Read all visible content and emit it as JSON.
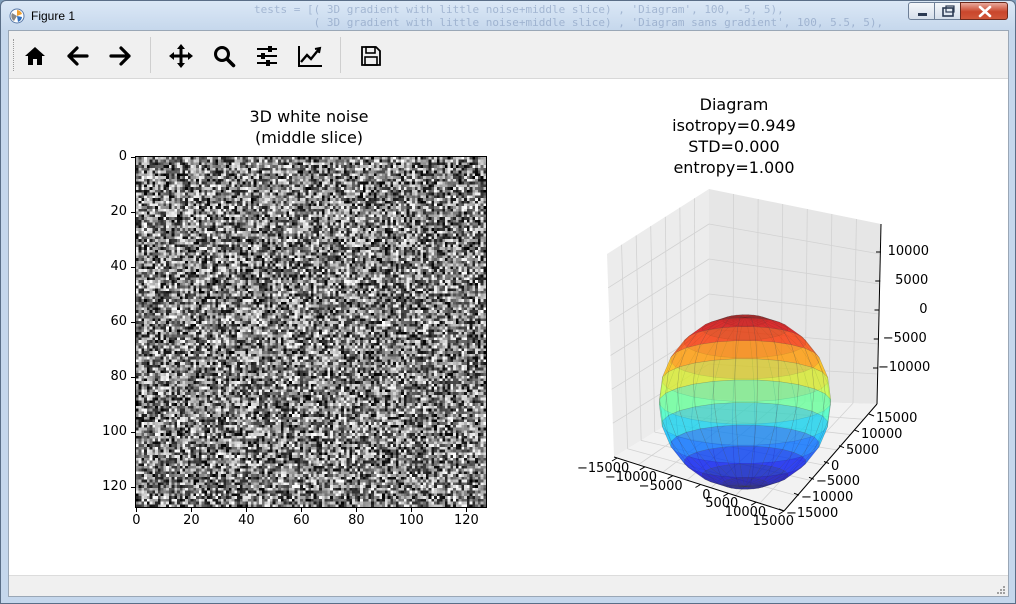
{
  "window": {
    "title": "Figure 1",
    "background_code": "        tests = [( 3D gradient with little noise+middle slice) , 'Diagram', 100, -5, 5),\n                 ( 3D gradient with little noise+middle slice) , 'Diagram sans gradient', 100, 5.5, 5),"
  },
  "toolbar": {
    "buttons": [
      {
        "name": "home-button",
        "icon": "home-icon"
      },
      {
        "name": "back-button",
        "icon": "arrow-left-icon"
      },
      {
        "name": "forward-button",
        "icon": "arrow-right-icon"
      },
      {
        "name": "pan-button",
        "icon": "move-icon"
      },
      {
        "name": "zoom-button",
        "icon": "search-icon"
      },
      {
        "name": "configure-subplots-button",
        "icon": "sliders-icon"
      },
      {
        "name": "edit-axis-button",
        "icon": "chart-line-icon"
      },
      {
        "name": "save-button",
        "icon": "save-icon"
      }
    ]
  },
  "chart_data": [
    {
      "type": "heatmap",
      "title_line1": "3D white noise",
      "title_line2": "(middle slice)",
      "description": "128x128 grayscale random noise image",
      "colormap": "gray",
      "xlim": [
        0,
        128
      ],
      "ylim": [
        128,
        0
      ],
      "xticks": [
        "0",
        "20",
        "40",
        "60",
        "80",
        "100",
        "120"
      ],
      "yticks": [
        "0",
        "20",
        "40",
        "60",
        "80",
        "100",
        "120"
      ],
      "grid_size": 128
    },
    {
      "type": "surface3d",
      "title_lines": [
        "Diagram",
        "isotropy=0.949",
        "STD=0.000",
        "entropy=1.000"
      ],
      "surface": "sphere",
      "colormap": "jet",
      "radius": 12000,
      "xticks": [
        "−15000",
        "−10000",
        "−5000",
        "0",
        "5000",
        "10000",
        "15000"
      ],
      "yticks": [
        "15000",
        "10000",
        "5000",
        "0",
        "−5000",
        "−10000",
        "−15000"
      ],
      "zticks": [
        "10000",
        "5000",
        "0",
        "−5000",
        "−10000"
      ]
    }
  ]
}
